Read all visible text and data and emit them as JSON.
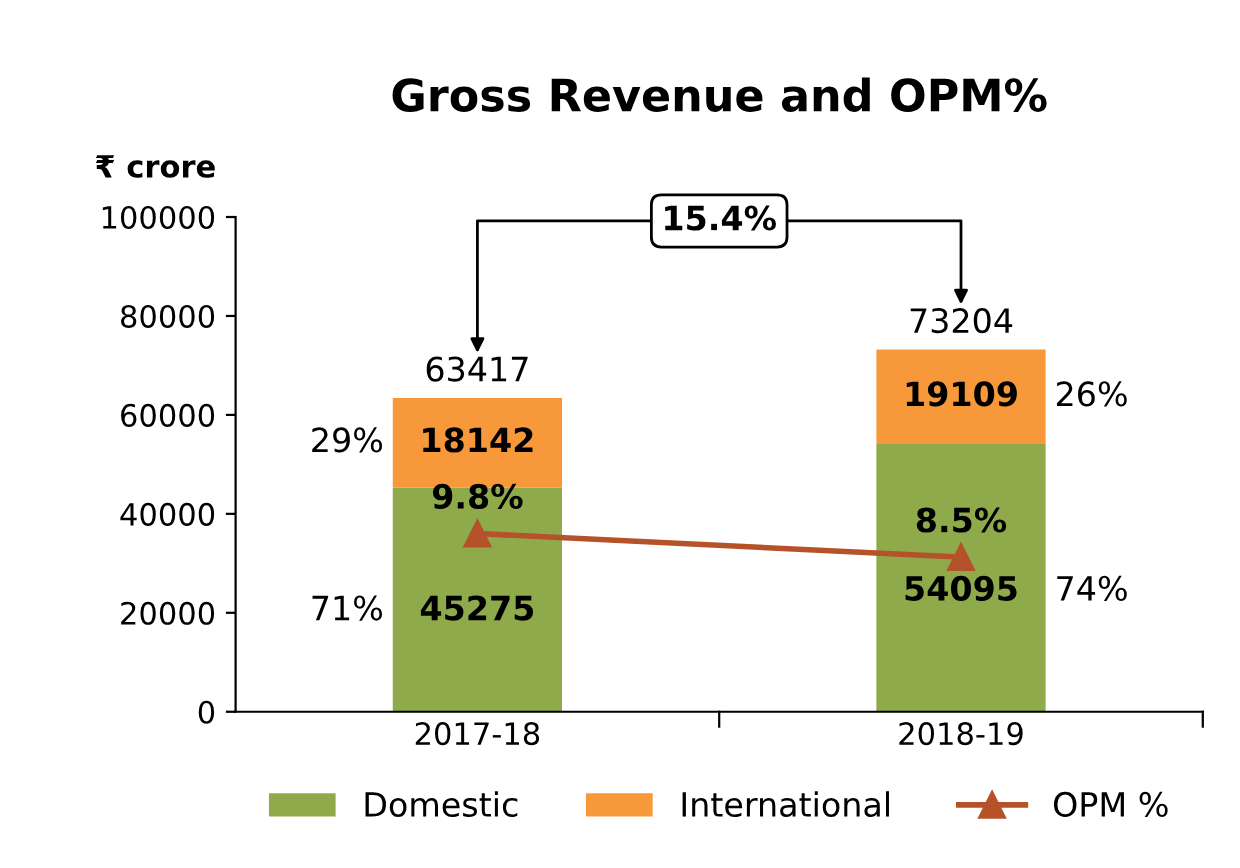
{
  "chart_data": {
    "type": "bar",
    "title": "Gross Revenue and OPM%",
    "ylabel": "₹ crore",
    "categories": [
      "2017-18",
      "2018-19"
    ],
    "stacked": true,
    "data_labels": true,
    "series": [
      {
        "name": "Domestic",
        "color": "#8faa4a",
        "values": [
          45275,
          54095
        ]
      },
      {
        "name": "International",
        "color": "#f7993a",
        "values": [
          18142,
          19109
        ]
      },
      {
        "name": "OPM %",
        "type": "line",
        "axis": "y2",
        "color": "#b5522a",
        "marker": "triangle",
        "values": [
          9.8,
          8.5
        ],
        "value_labels": [
          "9.8%",
          "8.5%"
        ]
      }
    ],
    "totals": [
      "63417",
      "73204"
    ],
    "ylim": [
      0,
      100000
    ],
    "yticks": [
      0,
      20000,
      40000,
      60000,
      80000,
      100000
    ],
    "y2lim": [
      0,
      27.2
    ],
    "tick_labels": "xy",
    "annotations": [
      "71%",
      "29%",
      "74%",
      "26%",
      "15.4%"
    ],
    "legend": "bottom",
    "grid": false
  }
}
